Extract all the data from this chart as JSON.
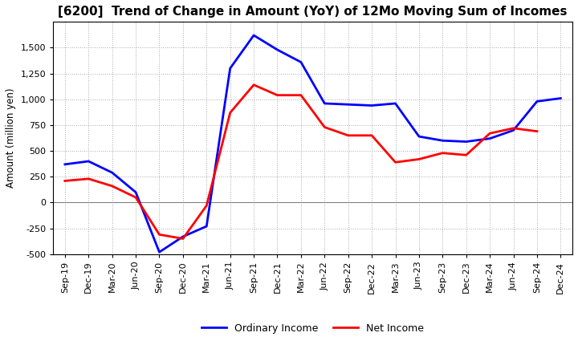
{
  "title": "[6200]  Trend of Change in Amount (YoY) of 12Mo Moving Sum of Incomes",
  "ylabel": "Amount (million yen)",
  "x_labels": [
    "Sep-19",
    "Dec-19",
    "Mar-20",
    "Jun-20",
    "Sep-20",
    "Dec-20",
    "Mar-21",
    "Jun-21",
    "Sep-21",
    "Dec-21",
    "Mar-22",
    "Jun-22",
    "Sep-22",
    "Dec-22",
    "Mar-23",
    "Jun-23",
    "Sep-23",
    "Dec-23",
    "Mar-24",
    "Jun-24",
    "Sep-24",
    "Dec-24"
  ],
  "ordinary_income": [
    370,
    400,
    290,
    100,
    -480,
    -330,
    -230,
    1300,
    1620,
    1480,
    1360,
    960,
    950,
    940,
    960,
    640,
    600,
    590,
    620,
    700,
    980,
    1010
  ],
  "net_income": [
    210,
    230,
    160,
    50,
    -310,
    -350,
    -30,
    870,
    1140,
    1040,
    1040,
    730,
    650,
    650,
    390,
    420,
    480,
    460,
    670,
    720,
    690,
    null
  ],
  "ordinary_color": "#0000FF",
  "net_color": "#FF0000",
  "ylim": [
    -500,
    1750
  ],
  "yticks": [
    -500,
    -250,
    0,
    250,
    500,
    750,
    1000,
    1250,
    1500
  ],
  "background_color": "#FFFFFF",
  "grid_color": "#AAAAAA",
  "title_fontsize": 11,
  "axis_fontsize": 8.5,
  "tick_fontsize": 8,
  "legend_fontsize": 9,
  "linewidth": 2.0
}
